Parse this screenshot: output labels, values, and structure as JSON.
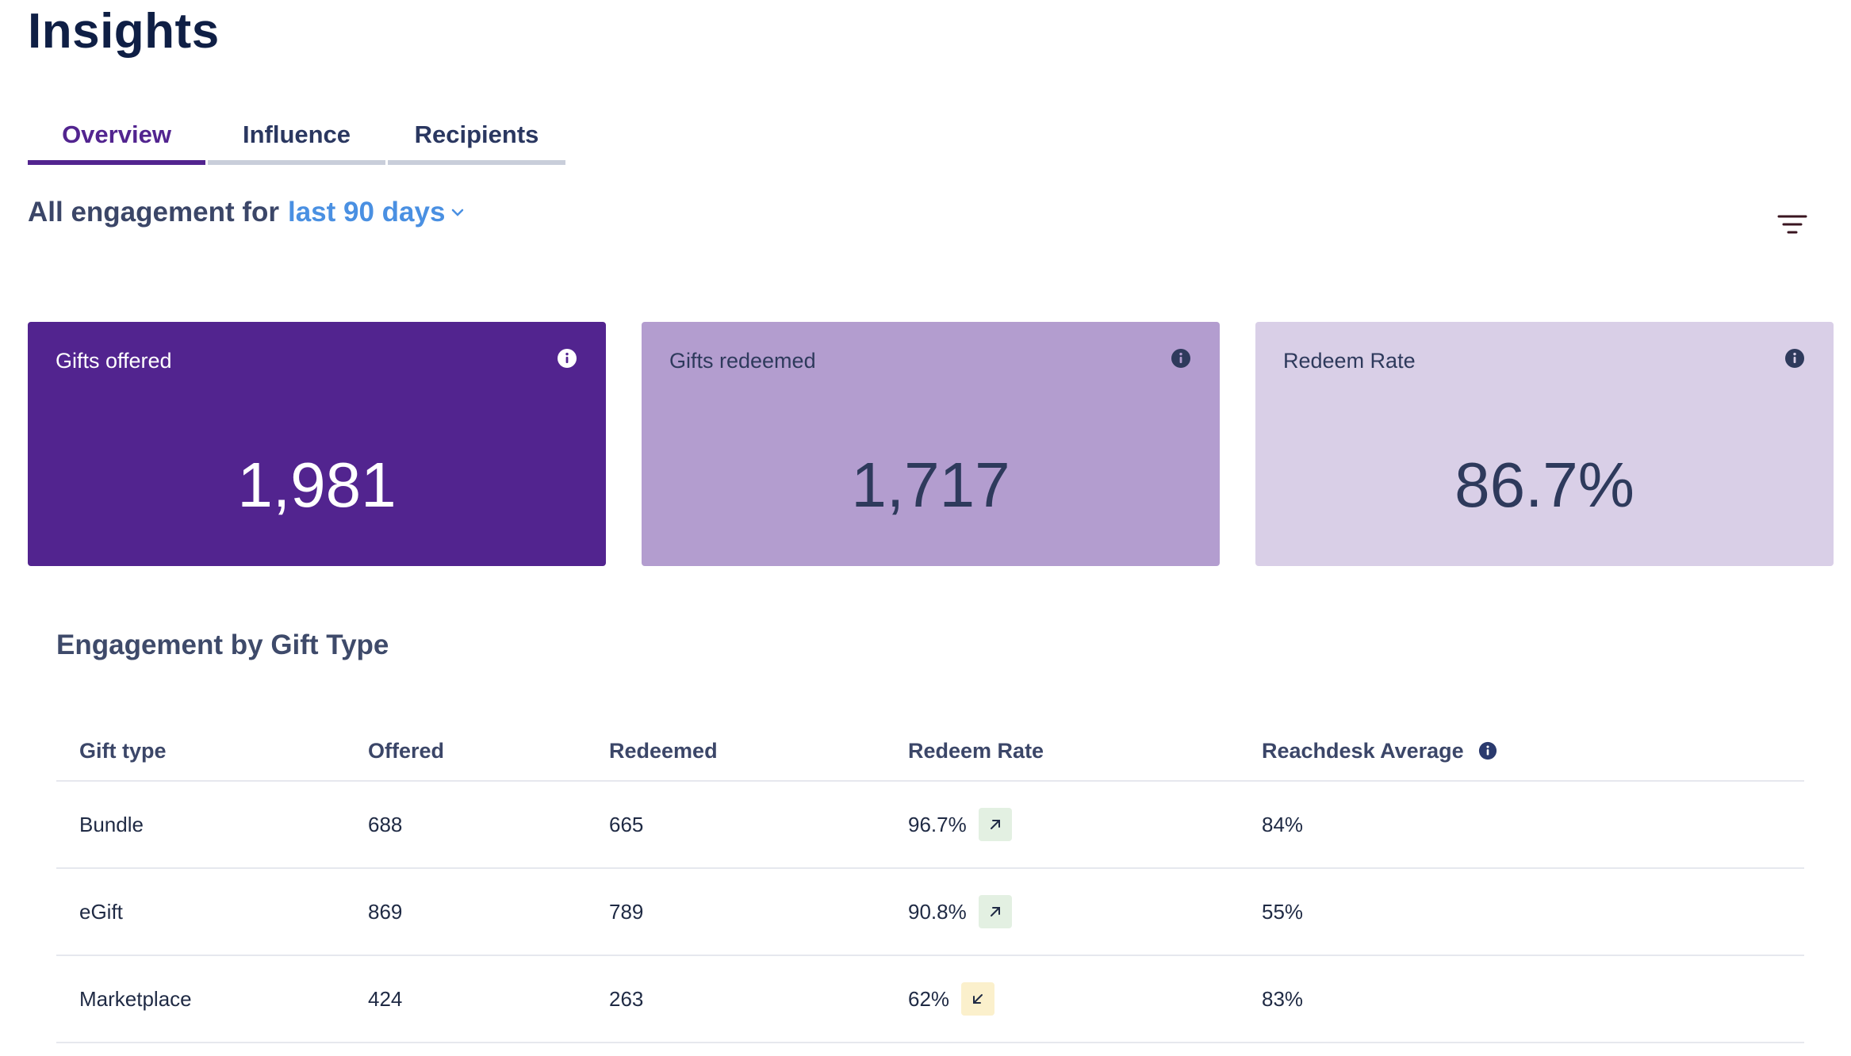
{
  "page": {
    "title": "Insights"
  },
  "tabs": [
    {
      "label": "Overview",
      "active": true
    },
    {
      "label": "Influence",
      "active": false
    },
    {
      "label": "Recipients",
      "active": false
    }
  ],
  "engagement": {
    "prefix": "All engagement for",
    "range": "last 90 days"
  },
  "toolbar": {
    "filter_icon": "filter-icon"
  },
  "cards": [
    {
      "label": "Gifts offered",
      "value": "1,981",
      "background": "#52248f",
      "icon": "info-icon"
    },
    {
      "label": "Gifts redeemed",
      "value": "1,717",
      "background": "#b39dcf",
      "icon": "info-icon"
    },
    {
      "label": "Redeem Rate",
      "value": "86.7%",
      "background": "#d9cfe7",
      "icon": "info-icon"
    }
  ],
  "section": {
    "title": "Engagement by Gift Type"
  },
  "table": {
    "headers": {
      "gift_type": "Gift type",
      "offered": "Offered",
      "redeemed": "Redeemed",
      "redeem_rate": "Redeem Rate",
      "average": "Reachdesk Average"
    },
    "rows": [
      {
        "gift_type": "Bundle",
        "offered": "688",
        "redeemed": "665",
        "redeem_rate": "96.7%",
        "trend": "up",
        "average": "84%"
      },
      {
        "gift_type": "eGift",
        "offered": "869",
        "redeemed": "789",
        "redeem_rate": "90.8%",
        "trend": "up",
        "average": "55%"
      },
      {
        "gift_type": "Marketplace",
        "offered": "424",
        "redeemed": "263",
        "redeem_rate": "62%",
        "trend": "down",
        "average": "83%"
      }
    ]
  },
  "colors": {
    "accent": "#52248f",
    "link": "#4a90e2",
    "trend_up_bg": "#e3f0e2",
    "trend_down_bg": "#fbf0cc"
  }
}
